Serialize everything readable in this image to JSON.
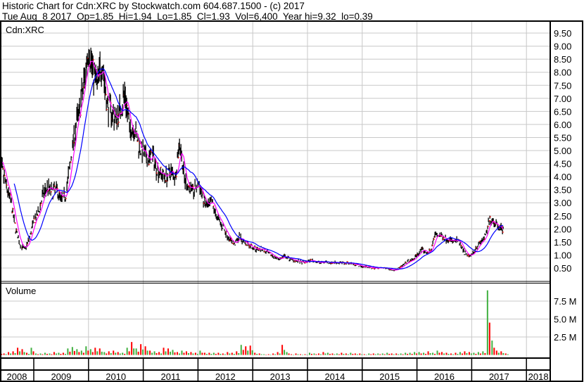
{
  "header": {
    "title": "Historic Chart for Cdn:XRC by Stockwatch.com 604.687.1500 - (c) 2017",
    "quote": "Tue Aug  8 2017  Op=1.85  Hi=1.94  Lo=1.85  Cl=1.93  Vol=6,400  Year hi=9.32  lo=0.39"
  },
  "chart_data": [
    {
      "type": "line",
      "title": "Cdn:XRC",
      "ylim": [
        0,
        10
      ],
      "yticks": [
        "0.50",
        "1.00",
        "1.50",
        "2.00",
        "2.50",
        "3.00",
        "3.50",
        "4.00",
        "4.50",
        "5.00",
        "5.50",
        "6.00",
        "6.50",
        "7.00",
        "7.50",
        "8.00",
        "8.50",
        "9.00",
        "9.50"
      ],
      "grid": true,
      "colors": {
        "price": "#000000",
        "down_tick": "#ff0000",
        "short_ma": "#ff00ff",
        "long_ma": "#0000ff"
      },
      "x": [
        "2008-05",
        "2008-06",
        "2008-07",
        "2008-08",
        "2008-09",
        "2008-10",
        "2008-11",
        "2008-12",
        "2009-01",
        "2009-02",
        "2009-03",
        "2009-04",
        "2009-05",
        "2009-06",
        "2009-07",
        "2009-08",
        "2009-09",
        "2009-10",
        "2009-11",
        "2009-12",
        "2010-01",
        "2010-02",
        "2010-03",
        "2010-04",
        "2010-05",
        "2010-06",
        "2010-07",
        "2010-08",
        "2010-09",
        "2010-10",
        "2010-11",
        "2010-12",
        "2011-01",
        "2011-02",
        "2011-03",
        "2011-04",
        "2011-05",
        "2011-06",
        "2011-07",
        "2011-08",
        "2011-09",
        "2011-10",
        "2011-11",
        "2011-12",
        "2012-01",
        "2012-02",
        "2012-03",
        "2012-04",
        "2012-05",
        "2012-06",
        "2012-07",
        "2012-08",
        "2012-09",
        "2012-10",
        "2012-11",
        "2012-12",
        "2013-01",
        "2013-02",
        "2013-03",
        "2013-04",
        "2013-05",
        "2013-06",
        "2013-07",
        "2013-08",
        "2013-09",
        "2013-10",
        "2013-11",
        "2013-12",
        "2014-01",
        "2014-02",
        "2014-03",
        "2014-04",
        "2014-05",
        "2014-06",
        "2014-07",
        "2014-08",
        "2014-09",
        "2014-10",
        "2014-11",
        "2014-12",
        "2015-01",
        "2015-02",
        "2015-03",
        "2015-04",
        "2015-05",
        "2015-06",
        "2015-07",
        "2015-08",
        "2015-09",
        "2015-10",
        "2015-11",
        "2015-12",
        "2016-01",
        "2016-02",
        "2016-03",
        "2016-04",
        "2016-05",
        "2016-06",
        "2016-07",
        "2016-08",
        "2016-09",
        "2016-10",
        "2016-11",
        "2016-12",
        "2017-01",
        "2017-02",
        "2017-03",
        "2017-04",
        "2017-05",
        "2017-06",
        "2017-07",
        "2017-08"
      ],
      "values": [
        4.6,
        4.3,
        3.6,
        3.0,
        2.0,
        1.4,
        1.2,
        1.6,
        2.3,
        2.6,
        3.3,
        3.6,
        3.4,
        3.5,
        3.1,
        3.3,
        4.5,
        5.8,
        6.5,
        7.6,
        9.0,
        8.0,
        7.5,
        8.5,
        6.8,
        6.5,
        6.2,
        6.6,
        7.2,
        5.8,
        5.9,
        5.2,
        4.9,
        4.6,
        4.8,
        4.3,
        4.1,
        4.0,
        4.2,
        4.0,
        5.4,
        3.9,
        3.6,
        3.4,
        3.8,
        3.2,
        2.8,
        3.0,
        2.5,
        2.2,
        1.9,
        1.6,
        1.4,
        1.7,
        1.5,
        1.4,
        1.3,
        1.2,
        1.25,
        1.1,
        1.0,
        0.9,
        0.85,
        0.95,
        0.85,
        0.8,
        0.75,
        0.7,
        0.75,
        0.8,
        0.72,
        0.7,
        0.75,
        0.7,
        0.72,
        0.7,
        0.68,
        0.7,
        0.65,
        0.62,
        0.55,
        0.55,
        0.5,
        0.5,
        0.5,
        0.5,
        0.45,
        0.42,
        0.5,
        0.6,
        0.75,
        0.8,
        1.0,
        1.2,
        1.1,
        1.15,
        1.8,
        1.75,
        1.65,
        1.6,
        1.5,
        1.55,
        1.2,
        0.95,
        1.0,
        1.3,
        1.5,
        1.7,
        2.4,
        2.25,
        2.1,
        1.93
      ]
    },
    {
      "type": "bar",
      "title": "Volume",
      "yticks": [
        "2.5 M",
        "5.0 M",
        "7.5 M"
      ],
      "ylim": [
        0,
        10
      ],
      "unit": "M",
      "colors": {
        "up": "#40b040",
        "down": "#ff0000"
      },
      "values": [
        0.3,
        0.2,
        0.4,
        0.5,
        1.0,
        0.8,
        0.3,
        1.0,
        0.2,
        0.2,
        0.3,
        0.2,
        0.4,
        0.3,
        0.3,
        0.9,
        1.1,
        0.8,
        0.6,
        1.2,
        0.8,
        1.0,
        0.9,
        0.4,
        0.5,
        0.6,
        0.4,
        0.3,
        1.0,
        1.8,
        0.9,
        1.5,
        1.2,
        0.6,
        0.5,
        0.4,
        1.0,
        0.9,
        0.7,
        0.4,
        0.6,
        0.5,
        0.4,
        0.3,
        0.6,
        0.3,
        0.3,
        0.3,
        0.3,
        0.2,
        0.4,
        0.3,
        0.5,
        1.4,
        1.2,
        1.3,
        0.3,
        0.2,
        0.1,
        0.1,
        0.2,
        0.4,
        1.4,
        0.4,
        0.1,
        0.2,
        0.1,
        0.1,
        0.3,
        0.2,
        0.2,
        0.4,
        0.3,
        0.2,
        0.2,
        0.3,
        0.2,
        0.3,
        0.2,
        0.2,
        0.1,
        0.2,
        0.2,
        0.2,
        0.2,
        0.3,
        0.2,
        0.2,
        0.2,
        0.3,
        0.3,
        0.4,
        0.4,
        0.3,
        0.5,
        0.3,
        0.6,
        0.4,
        0.3,
        0.2,
        0.3,
        0.4,
        0.5,
        0.4,
        0.3,
        0.4,
        0.5,
        9.0,
        2.0,
        0.6,
        0.5,
        0.2
      ]
    }
  ],
  "x_axis": {
    "years": [
      "2008",
      "2009",
      "2010",
      "2011",
      "2012",
      "2013",
      "2014",
      "2015",
      "2016",
      "2017",
      "2018"
    ]
  }
}
